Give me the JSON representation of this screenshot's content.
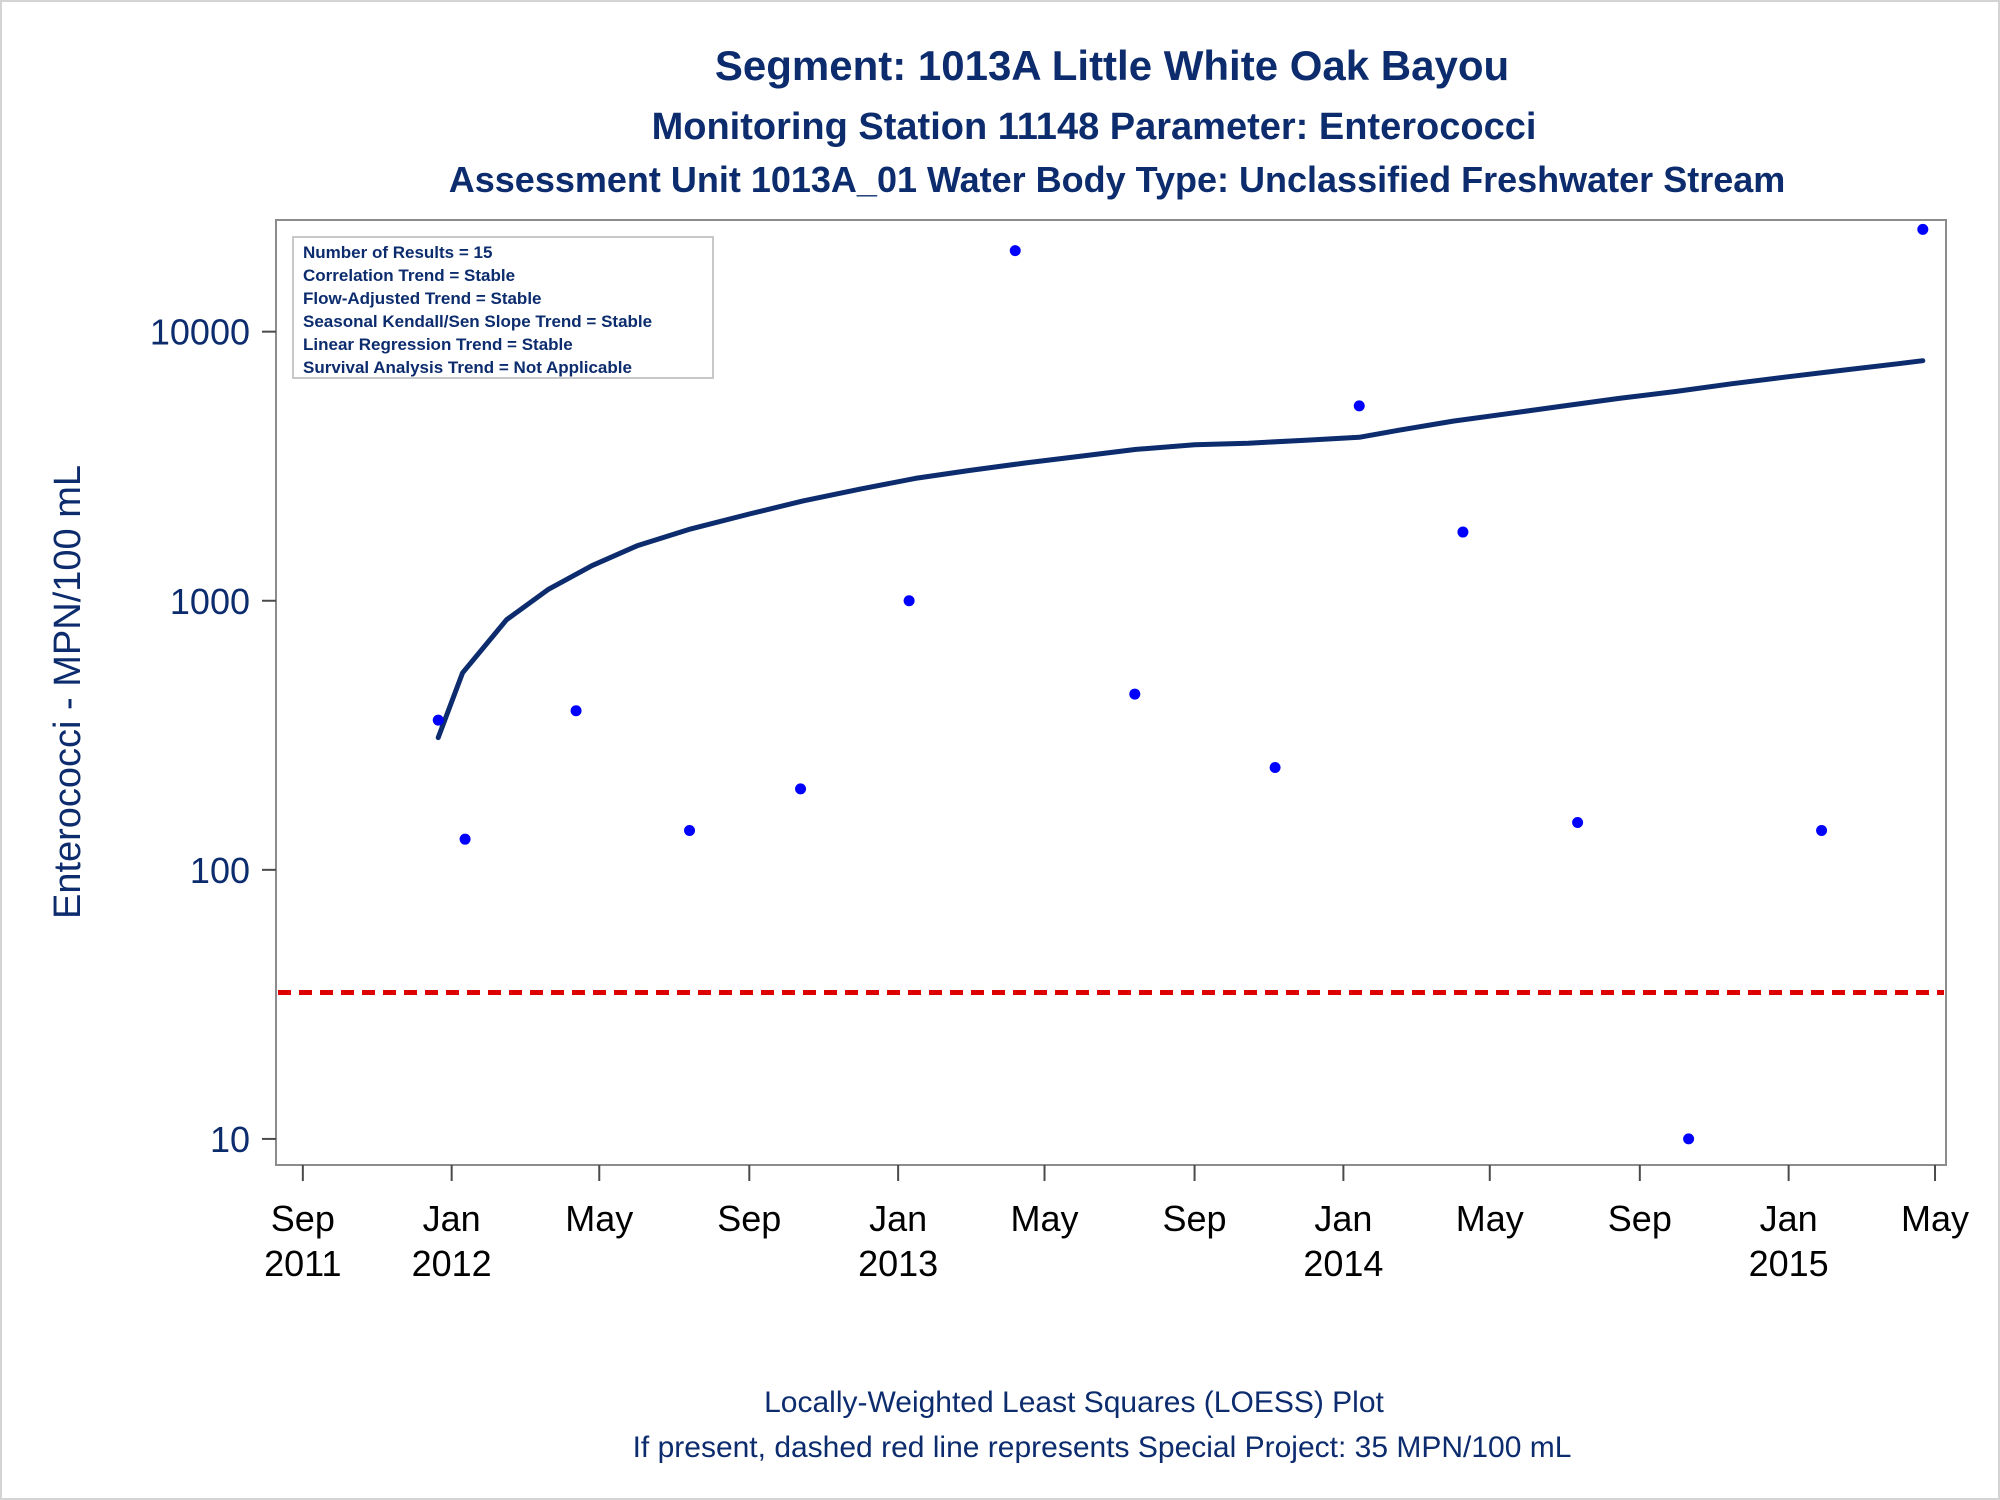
{
  "chart_data": {
    "type": "scatter",
    "title": "Segment: 1013A  Little White Oak Bayou",
    "subtitle": "Monitoring Station 11148 Parameter: Enterococci",
    "subtitle2": "Assessment Unit 1013A_01   Water Body Type: Unclassified Freshwater Stream",
    "ylabel": "Enterococci - MPN/100 mL",
    "xlabel": "",
    "yscale": "log",
    "ylim": [
      8,
      26000
    ],
    "xlim": [
      "2011-08-10",
      "2015-05-10"
    ],
    "grid": false,
    "y_ticks": [
      10,
      100,
      1000,
      10000
    ],
    "y_tick_labels": [
      "10",
      "100",
      "1000",
      "10000"
    ],
    "x_ticks": [
      {
        "date": "2011-09-01",
        "label": "Sep",
        "year": "2011"
      },
      {
        "date": "2012-01-01",
        "label": "Jan",
        "year": "2012"
      },
      {
        "date": "2012-05-01",
        "label": "May",
        "year": ""
      },
      {
        "date": "2012-09-01",
        "label": "Sep",
        "year": ""
      },
      {
        "date": "2013-01-01",
        "label": "Jan",
        "year": "2013"
      },
      {
        "date": "2013-05-01",
        "label": "May",
        "year": ""
      },
      {
        "date": "2013-09-01",
        "label": "Sep",
        "year": ""
      },
      {
        "date": "2014-01-01",
        "label": "Jan",
        "year": "2014"
      },
      {
        "date": "2014-05-01",
        "label": "May",
        "year": ""
      },
      {
        "date": "2014-09-01",
        "label": "Sep",
        "year": ""
      },
      {
        "date": "2015-01-01",
        "label": "Jan",
        "year": "2015"
      },
      {
        "date": "2015-05-01",
        "label": "May",
        "year": ""
      }
    ],
    "series": [
      {
        "type": "scatter",
        "color": "#0000ff",
        "points": [
          {
            "x": "2011-12-21",
            "y": 360
          },
          {
            "x": "2012-01-12",
            "y": 130
          },
          {
            "x": "2012-04-12",
            "y": 390
          },
          {
            "x": "2012-07-14",
            "y": 140
          },
          {
            "x": "2012-10-13",
            "y": 200
          },
          {
            "x": "2013-01-10",
            "y": 1000
          },
          {
            "x": "2013-04-07",
            "y": 20000
          },
          {
            "x": "2013-07-14",
            "y": 450
          },
          {
            "x": "2013-11-06",
            "y": 240
          },
          {
            "x": "2014-01-14",
            "y": 5300
          },
          {
            "x": "2014-04-09",
            "y": 1800
          },
          {
            "x": "2014-07-12",
            "y": 150
          },
          {
            "x": "2014-10-11",
            "y": 10
          },
          {
            "x": "2015-01-28",
            "y": 140
          },
          {
            "x": "2015-04-21",
            "y": 24000
          }
        ]
      },
      {
        "type": "line",
        "color": "#0c2c6e",
        "points": [
          {
            "x": "2011-12-21",
            "y": 310
          },
          {
            "x": "2012-01-10",
            "y": 540
          },
          {
            "x": "2012-02-15",
            "y": 850
          },
          {
            "x": "2012-03-20",
            "y": 1100
          },
          {
            "x": "2012-04-25",
            "y": 1350
          },
          {
            "x": "2012-06-01",
            "y": 1600
          },
          {
            "x": "2012-07-15",
            "y": 1850
          },
          {
            "x": "2012-09-01",
            "y": 2100
          },
          {
            "x": "2012-10-15",
            "y": 2350
          },
          {
            "x": "2012-12-01",
            "y": 2600
          },
          {
            "x": "2013-01-15",
            "y": 2850
          },
          {
            "x": "2013-03-01",
            "y": 3050
          },
          {
            "x": "2013-04-15",
            "y": 3250
          },
          {
            "x": "2013-06-01",
            "y": 3450
          },
          {
            "x": "2013-07-15",
            "y": 3650
          },
          {
            "x": "2013-09-01",
            "y": 3800
          },
          {
            "x": "2013-10-15",
            "y": 3850
          },
          {
            "x": "2013-12-01",
            "y": 3950
          },
          {
            "x": "2014-01-14",
            "y": 4050
          },
          {
            "x": "2014-02-15",
            "y": 4300
          },
          {
            "x": "2014-04-01",
            "y": 4650
          },
          {
            "x": "2014-05-15",
            "y": 4950
          },
          {
            "x": "2014-07-01",
            "y": 5300
          },
          {
            "x": "2014-08-15",
            "y": 5650
          },
          {
            "x": "2014-10-01",
            "y": 6000
          },
          {
            "x": "2014-11-15",
            "y": 6400
          },
          {
            "x": "2015-01-01",
            "y": 6800
          },
          {
            "x": "2015-02-15",
            "y": 7200
          },
          {
            "x": "2015-04-01",
            "y": 7600
          },
          {
            "x": "2015-04-21",
            "y": 7800
          }
        ]
      }
    ],
    "reference_line": {
      "y": 35,
      "color": "#dd0000",
      "style": "dashed"
    },
    "stats_box": [
      "Number of Results = 15",
      "Correlation Trend = Stable",
      "Flow-Adjusted Trend = Stable",
      "Seasonal Kendall/Sen Slope Trend = Stable",
      "Linear Regression Trend = Stable",
      "Survival Analysis Trend = Not Applicable"
    ],
    "footnotes": [
      "Locally-Weighted Least Squares (LOESS) Plot",
      "If present, dashed red line represents Special Project: 35 MPN/100 mL"
    ]
  }
}
